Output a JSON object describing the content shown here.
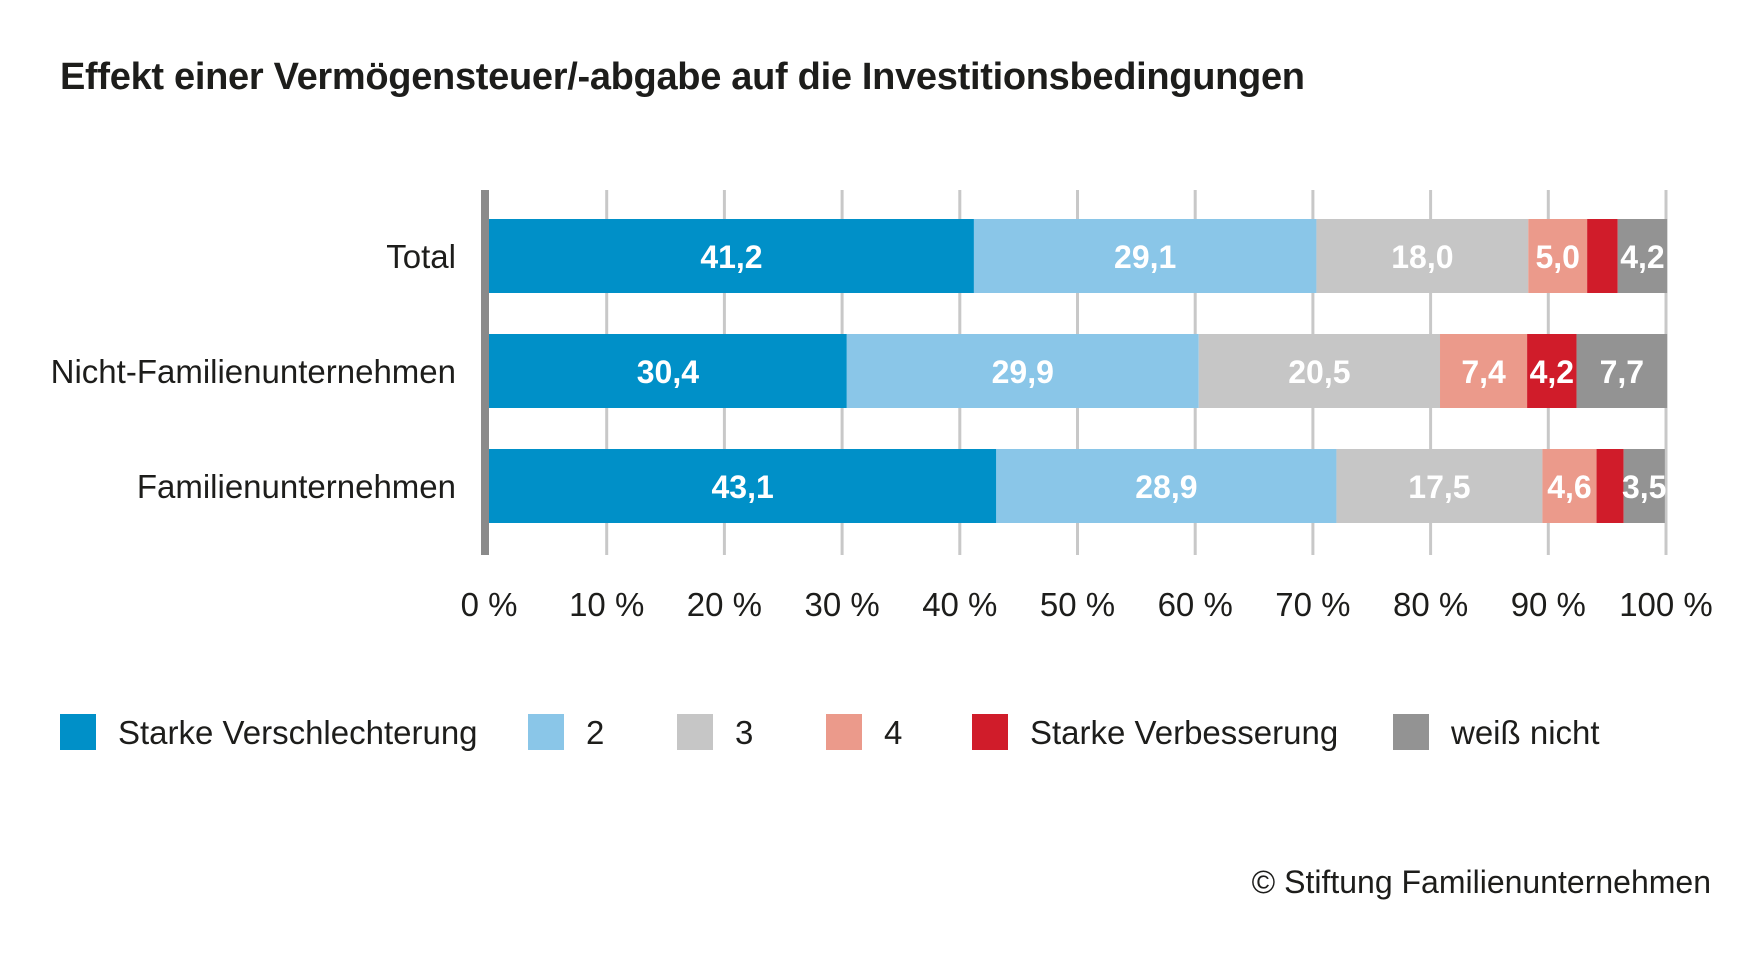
{
  "chart_data": {
    "type": "bar",
    "orientation": "horizontal",
    "stacked": true,
    "title": "Effekt einer Vermögensteuer/-abgabe auf die Investitionsbedingungen",
    "categories": [
      "Total",
      "Nicht-Familienunternehmen",
      "Familienunternehmen"
    ],
    "series": [
      {
        "name": "Starke Verschlechterung",
        "color": "#0090c8",
        "values": [
          41.2,
          30.4,
          43.1
        ],
        "labels": [
          "41,2",
          "30,4",
          "43,1"
        ]
      },
      {
        "name": "2",
        "color": "#8ac6e8",
        "values": [
          29.1,
          29.9,
          28.9
        ],
        "labels": [
          "29,1",
          "29,9",
          "28,9"
        ]
      },
      {
        "name": "3",
        "color": "#c6c6c6",
        "values": [
          18.0,
          20.5,
          17.5
        ],
        "labels": [
          "18,0",
          "20,5",
          "17,5"
        ]
      },
      {
        "name": "4",
        "color": "#eb9a8b",
        "values": [
          5.0,
          7.4,
          4.6
        ],
        "labels": [
          "5,0",
          "7,4",
          "4,6"
        ]
      },
      {
        "name": "Starke Verbesserung",
        "color": "#d01c2a",
        "values": [
          2.6,
          4.2,
          2.3
        ],
        "labels": [
          "",
          "4,2",
          ""
        ]
      },
      {
        "name": "weiß nicht",
        "color": "#939393",
        "values": [
          4.2,
          7.7,
          3.5
        ],
        "labels": [
          "4,2",
          "7,7",
          "3,5"
        ]
      }
    ],
    "xlim": [
      0,
      100
    ],
    "xticks": [
      0,
      10,
      20,
      30,
      40,
      50,
      60,
      70,
      80,
      90,
      100
    ],
    "xtick_labels": [
      "0 %",
      "10 %",
      "20 %",
      "30 %",
      "40 %",
      "50 %",
      "60 %",
      "70 %",
      "80 %",
      "90 %",
      "100 %"
    ],
    "grid": true,
    "legend_position": "bottom"
  },
  "footer": {
    "copyright": "© Stiftung Familienunternehmen"
  }
}
